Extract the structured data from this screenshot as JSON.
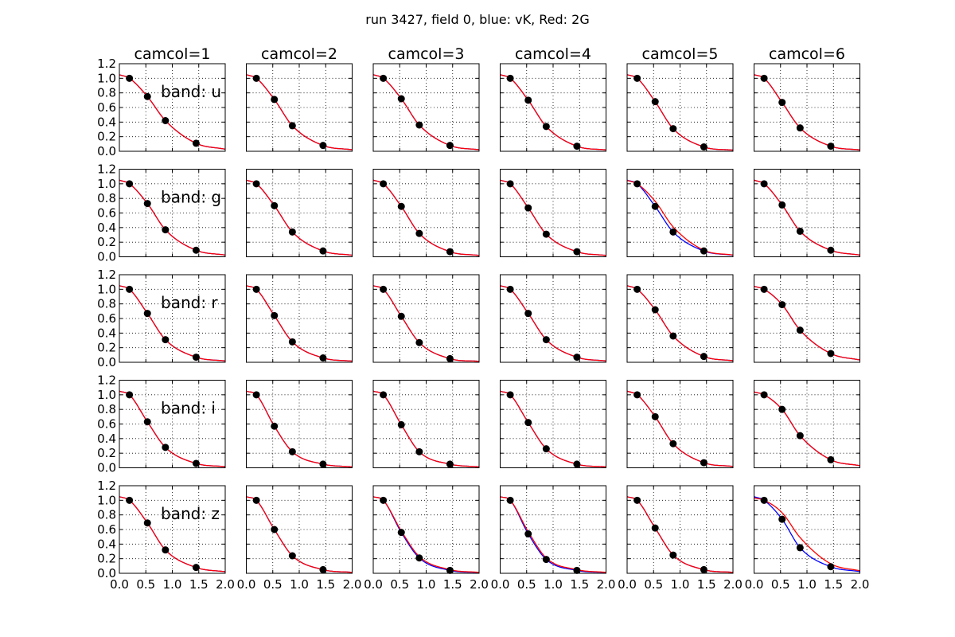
{
  "title": "run 3427, field 0, blue: vK, Red: 2G",
  "chart_data": {
    "type": "line",
    "grid": true,
    "xlim": [
      0.0,
      2.0
    ],
    "ylim": [
      0.0,
      1.2
    ],
    "xticks": [
      "0.0",
      "0.5",
      "1.0",
      "1.5",
      "2.0"
    ],
    "yticks": [
      "0.0",
      "0.2",
      "0.4",
      "0.6",
      "0.8",
      "1.0",
      "1.2"
    ],
    "columns": [
      "camcol=1",
      "camcol=2",
      "camcol=3",
      "camcol=4",
      "camcol=5",
      "camcol=6"
    ],
    "rows": [
      "band: u",
      "band: g",
      "band: r",
      "band: i",
      "band: z"
    ],
    "point_x": [
      0.19,
      0.53,
      0.87,
      1.45
    ],
    "series_colors": {
      "vK": "#0000ff",
      "2G": "#ff0000",
      "points": "#000000"
    },
    "points": [
      [
        [
          1.0,
          0.75,
          0.42,
          0.11
        ],
        [
          1.0,
          0.71,
          0.35,
          0.08
        ],
        [
          1.0,
          0.72,
          0.36,
          0.08
        ],
        [
          1.0,
          0.7,
          0.34,
          0.07
        ],
        [
          1.0,
          0.68,
          0.31,
          0.06
        ],
        [
          1.0,
          0.67,
          0.32,
          0.07
        ]
      ],
      [
        [
          1.0,
          0.73,
          0.37,
          0.09
        ],
        [
          1.0,
          0.7,
          0.34,
          0.08
        ],
        [
          1.0,
          0.69,
          0.32,
          0.07
        ],
        [
          1.0,
          0.67,
          0.31,
          0.07
        ],
        [
          1.0,
          0.69,
          0.34,
          0.08
        ],
        [
          1.0,
          0.71,
          0.35,
          0.09
        ]
      ],
      [
        [
          1.0,
          0.67,
          0.31,
          0.07
        ],
        [
          1.0,
          0.64,
          0.28,
          0.06
        ],
        [
          1.0,
          0.63,
          0.27,
          0.05
        ],
        [
          1.0,
          0.67,
          0.31,
          0.07
        ],
        [
          1.0,
          0.72,
          0.36,
          0.08
        ],
        [
          1.0,
          0.79,
          0.44,
          0.12
        ]
      ],
      [
        [
          1.0,
          0.63,
          0.28,
          0.06
        ],
        [
          1.0,
          0.57,
          0.22,
          0.05
        ],
        [
          1.0,
          0.59,
          0.22,
          0.05
        ],
        [
          1.0,
          0.62,
          0.26,
          0.05
        ],
        [
          1.0,
          0.7,
          0.33,
          0.07
        ],
        [
          1.0,
          0.8,
          0.44,
          0.11
        ]
      ],
      [
        [
          1.0,
          0.69,
          0.32,
          0.08
        ],
        [
          1.0,
          0.6,
          0.24,
          0.05
        ],
        [
          1.0,
          0.56,
          0.21,
          0.04
        ],
        [
          1.0,
          0.54,
          0.19,
          0.04
        ],
        [
          1.0,
          0.62,
          0.25,
          0.05
        ],
        [
          1.0,
          0.74,
          0.35,
          0.09
        ]
      ]
    ],
    "red_points": [
      [
        [
          1.0,
          0.75,
          0.42,
          0.11
        ],
        [
          1.0,
          0.71,
          0.35,
          0.08
        ],
        [
          1.0,
          0.72,
          0.36,
          0.08
        ],
        [
          1.0,
          0.7,
          0.34,
          0.07
        ],
        [
          1.0,
          0.68,
          0.31,
          0.06
        ],
        [
          1.0,
          0.67,
          0.32,
          0.07
        ]
      ],
      [
        [
          1.0,
          0.73,
          0.37,
          0.09
        ],
        [
          1.0,
          0.7,
          0.34,
          0.08
        ],
        [
          1.0,
          0.69,
          0.32,
          0.07
        ],
        [
          1.0,
          0.67,
          0.31,
          0.07
        ],
        [
          1.0,
          0.76,
          0.41,
          0.09
        ],
        [
          1.0,
          0.71,
          0.35,
          0.09
        ]
      ],
      [
        [
          1.0,
          0.67,
          0.31,
          0.07
        ],
        [
          1.0,
          0.64,
          0.28,
          0.06
        ],
        [
          1.0,
          0.63,
          0.27,
          0.05
        ],
        [
          1.0,
          0.67,
          0.31,
          0.07
        ],
        [
          1.0,
          0.72,
          0.36,
          0.08
        ],
        [
          1.0,
          0.79,
          0.44,
          0.12
        ]
      ],
      [
        [
          1.0,
          0.63,
          0.28,
          0.06
        ],
        [
          1.0,
          0.57,
          0.22,
          0.05
        ],
        [
          1.0,
          0.59,
          0.22,
          0.05
        ],
        [
          1.0,
          0.62,
          0.26,
          0.05
        ],
        [
          1.0,
          0.7,
          0.33,
          0.07
        ],
        [
          1.0,
          0.8,
          0.44,
          0.11
        ]
      ],
      [
        [
          1.0,
          0.69,
          0.32,
          0.08
        ],
        [
          1.0,
          0.6,
          0.24,
          0.05
        ],
        [
          1.0,
          0.58,
          0.23,
          0.05
        ],
        [
          1.0,
          0.57,
          0.21,
          0.05
        ],
        [
          1.0,
          0.62,
          0.25,
          0.05
        ],
        [
          1.0,
          0.83,
          0.49,
          0.13
        ]
      ]
    ]
  }
}
